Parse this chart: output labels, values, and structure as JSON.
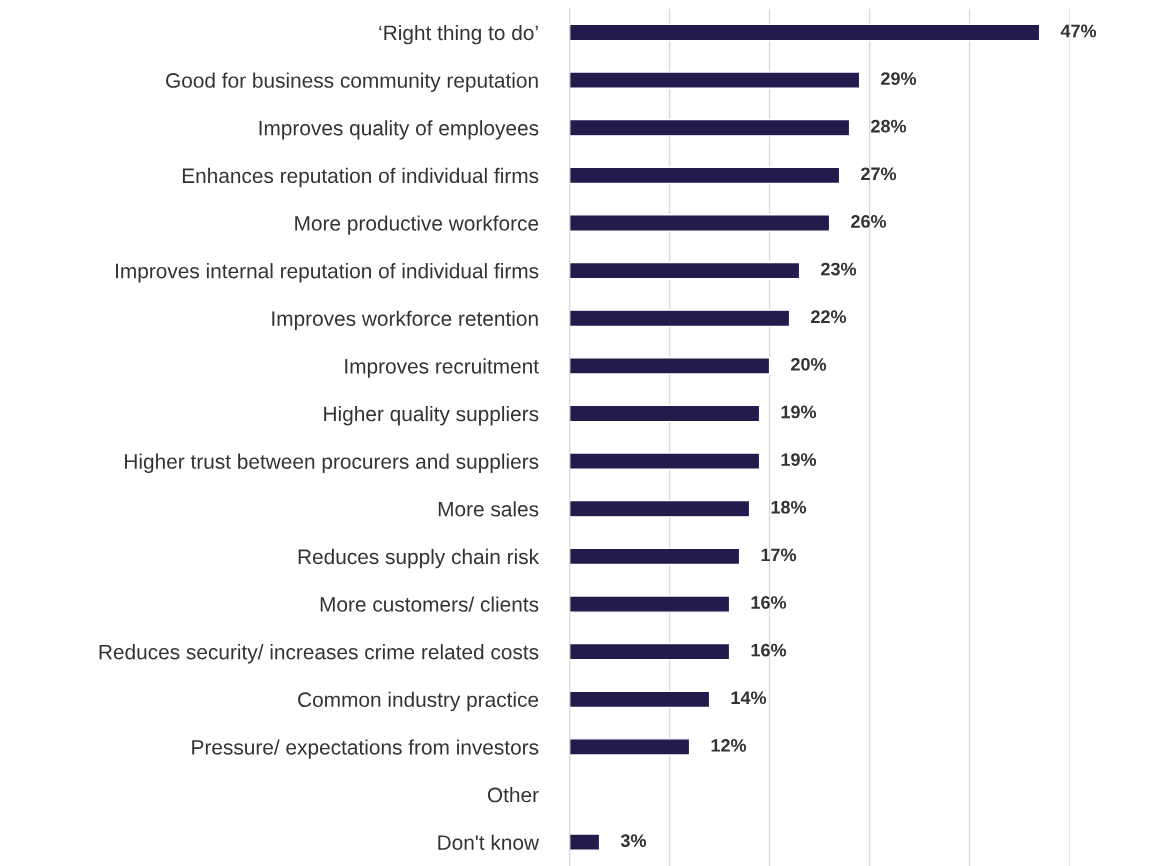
{
  "chart_data": {
    "type": "bar",
    "orientation": "horizontal",
    "categories": [
      "‘Right thing to do’",
      "Good for business community reputation",
      "Improves quality of employees",
      "Enhances reputation of individual firms",
      "More productive workforce",
      "Improves internal reputation of individual firms",
      "Improves workforce retention",
      "Improves recruitment",
      "Higher quality suppliers",
      "Higher trust between procurers and suppliers",
      "More sales",
      "Reduces supply chain risk",
      "More customers/ clients",
      "Reduces security/ increases crime related costs",
      "Common industry practice",
      "Pressure/ expectations from investors",
      "Other",
      "Don't know"
    ],
    "values": [
      47,
      29,
      28,
      27,
      26,
      23,
      22,
      20,
      19,
      19,
      18,
      17,
      16,
      16,
      14,
      12,
      null,
      3
    ],
    "value_labels": [
      "47%",
      "29%",
      "28%",
      "27%",
      "26%",
      "23%",
      "22%",
      "20%",
      "19%",
      "19%",
      "18%",
      "17%",
      "16%",
      "16%",
      "14%",
      "12%",
      null,
      "3%"
    ],
    "color": "#221b4b",
    "xlim": [
      0,
      50
    ],
    "xticks": [
      {
        "value": 0,
        "label": null
      },
      {
        "value": 10,
        "label": null
      },
      {
        "value": 20,
        "label": null
      },
      {
        "value": 30,
        "label": null
      },
      {
        "value": 40,
        "label": null
      },
      {
        "value": 50,
        "label": null
      }
    ],
    "grid": "x",
    "tick_labels": "y",
    "legend": false
  }
}
